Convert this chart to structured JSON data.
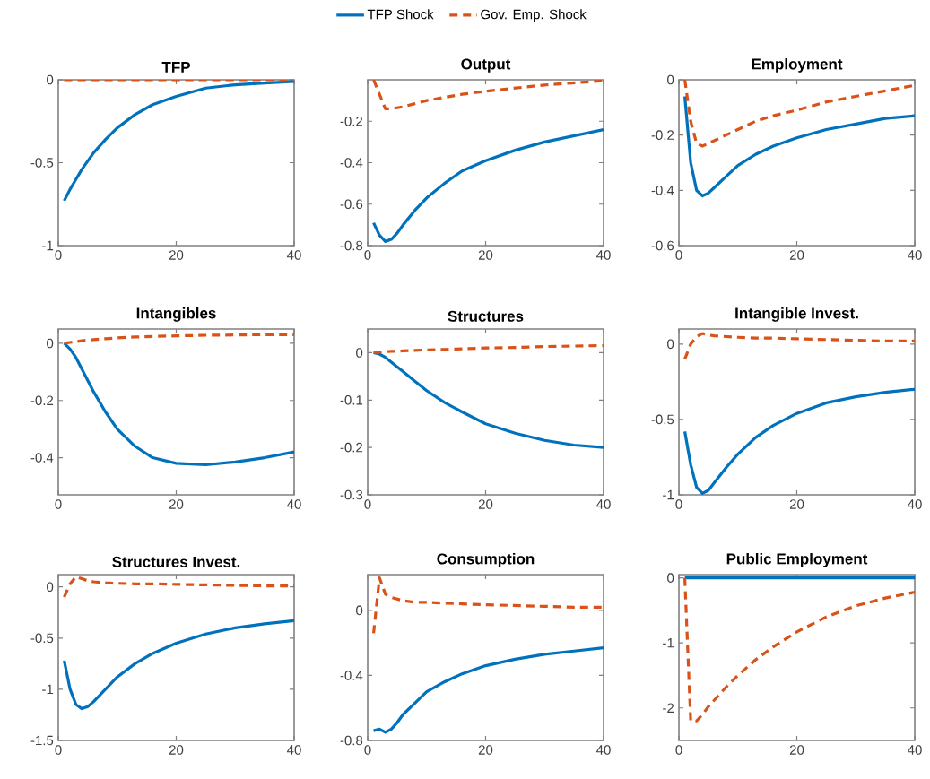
{
  "chart_data": [
    {
      "type": "line",
      "title": "TFP",
      "legend": "top",
      "x": [
        1,
        2,
        3,
        4,
        5,
        6,
        8,
        10,
        13,
        16,
        20,
        25,
        30,
        35,
        40
      ],
      "xlim": [
        0,
        40
      ],
      "xticks": [
        0,
        20,
        40
      ],
      "ylim": [
        -1,
        0
      ],
      "yticks": [
        -1,
        -0.5,
        0
      ],
      "series": [
        {
          "name": "TFP Shock",
          "color": "#0072bd",
          "line_style": "solid",
          "values": [
            -0.73,
            -0.66,
            -0.6,
            -0.54,
            -0.49,
            -0.44,
            -0.36,
            -0.29,
            -0.21,
            -0.15,
            -0.1,
            -0.05,
            -0.03,
            -0.02,
            -0.01
          ]
        },
        {
          "name": "Gov. Emp. Shock",
          "color": "#d95319",
          "line_style": "dashed",
          "values": [
            0,
            0,
            0,
            0,
            0,
            0,
            0,
            0,
            0,
            0,
            0,
            0,
            0,
            0,
            0
          ]
        }
      ]
    },
    {
      "type": "line",
      "title": "Output",
      "x": [
        1,
        2,
        3,
        4,
        5,
        6,
        8,
        10,
        13,
        16,
        20,
        25,
        30,
        35,
        40
      ],
      "xlim": [
        0,
        40
      ],
      "xticks": [
        0,
        20,
        40
      ],
      "ylim": [
        -0.8,
        0
      ],
      "yticks": [
        -0.8,
        -0.6,
        -0.4,
        -0.2
      ],
      "series": [
        {
          "color": "#0072bd",
          "line_style": "solid",
          "values": [
            -0.69,
            -0.75,
            -0.78,
            -0.77,
            -0.74,
            -0.7,
            -0.63,
            -0.57,
            -0.5,
            -0.44,
            -0.39,
            -0.34,
            -0.3,
            -0.27,
            -0.24
          ]
        },
        {
          "color": "#d95319",
          "line_style": "dashed",
          "values": [
            0,
            -0.07,
            -0.14,
            -0.14,
            -0.135,
            -0.13,
            -0.115,
            -0.1,
            -0.085,
            -0.07,
            -0.055,
            -0.04,
            -0.025,
            -0.015,
            -0.005
          ]
        }
      ]
    },
    {
      "type": "line",
      "title": "Employment",
      "x": [
        1,
        2,
        3,
        4,
        5,
        6,
        8,
        10,
        13,
        16,
        20,
        25,
        30,
        35,
        40
      ],
      "xlim": [
        0,
        40
      ],
      "xticks": [
        0,
        20,
        40
      ],
      "ylim": [
        -0.6,
        0
      ],
      "yticks": [
        -0.6,
        -0.4,
        -0.2,
        0
      ],
      "series": [
        {
          "color": "#0072bd",
          "line_style": "solid",
          "values": [
            -0.06,
            -0.3,
            -0.4,
            -0.42,
            -0.41,
            -0.39,
            -0.35,
            -0.31,
            -0.27,
            -0.24,
            -0.21,
            -0.18,
            -0.16,
            -0.14,
            -0.13
          ]
        },
        {
          "color": "#d95319",
          "line_style": "dashed",
          "values": [
            0,
            -0.15,
            -0.23,
            -0.24,
            -0.23,
            -0.22,
            -0.2,
            -0.18,
            -0.15,
            -0.13,
            -0.11,
            -0.08,
            -0.06,
            -0.04,
            -0.02
          ]
        }
      ]
    },
    {
      "type": "line",
      "title": "Intangibles",
      "x": [
        1,
        2,
        3,
        4,
        5,
        6,
        8,
        10,
        13,
        16,
        20,
        25,
        30,
        35,
        40
      ],
      "xlim": [
        0,
        40
      ],
      "xticks": [
        0,
        20,
        40
      ],
      "ylim": [
        -0.53,
        0.05
      ],
      "yticks": [
        -0.4,
        -0.2,
        0
      ],
      "series": [
        {
          "color": "#0072bd",
          "line_style": "solid",
          "values": [
            0,
            -0.02,
            -0.05,
            -0.09,
            -0.13,
            -0.17,
            -0.24,
            -0.3,
            -0.36,
            -0.4,
            -0.42,
            -0.425,
            -0.415,
            -0.4,
            -0.38
          ]
        },
        {
          "color": "#d95319",
          "line_style": "dashed",
          "values": [
            0,
            0.003,
            0.006,
            0.009,
            0.011,
            0.013,
            0.016,
            0.019,
            0.022,
            0.024,
            0.026,
            0.028,
            0.029,
            0.03,
            0.03
          ]
        }
      ]
    },
    {
      "type": "line",
      "title": "Structures",
      "x": [
        1,
        2,
        3,
        4,
        5,
        6,
        8,
        10,
        13,
        16,
        20,
        25,
        30,
        35,
        40
      ],
      "xlim": [
        0,
        40
      ],
      "xticks": [
        0,
        20,
        40
      ],
      "ylim": [
        -0.3,
        0.05
      ],
      "yticks": [
        -0.3,
        -0.2,
        -0.1,
        0
      ],
      "series": [
        {
          "color": "#0072bd",
          "line_style": "solid",
          "values": [
            0,
            -0.003,
            -0.01,
            -0.02,
            -0.03,
            -0.04,
            -0.06,
            -0.08,
            -0.105,
            -0.125,
            -0.15,
            -0.17,
            -0.185,
            -0.195,
            -0.2
          ]
        },
        {
          "color": "#d95319",
          "line_style": "dashed",
          "values": [
            0,
            0.001,
            0.002,
            0.003,
            0.003,
            0.004,
            0.005,
            0.006,
            0.007,
            0.008,
            0.01,
            0.011,
            0.013,
            0.014,
            0.015
          ]
        }
      ]
    },
    {
      "type": "line",
      "title": "Intangible Invest.",
      "x": [
        1,
        2,
        3,
        4,
        5,
        6,
        8,
        10,
        13,
        16,
        20,
        25,
        30,
        35,
        40
      ],
      "xlim": [
        0,
        40
      ],
      "xticks": [
        0,
        20,
        40
      ],
      "ylim": [
        -1,
        0.1
      ],
      "yticks": [
        -1,
        -0.5,
        0
      ],
      "series": [
        {
          "color": "#0072bd",
          "line_style": "solid",
          "values": [
            -0.58,
            -0.8,
            -0.95,
            -0.99,
            -0.97,
            -0.92,
            -0.82,
            -0.73,
            -0.62,
            -0.54,
            -0.46,
            -0.39,
            -0.35,
            -0.32,
            -0.3
          ]
        },
        {
          "color": "#d95319",
          "line_style": "dashed",
          "values": [
            -0.1,
            0,
            0.05,
            0.07,
            0.06,
            0.055,
            0.05,
            0.045,
            0.04,
            0.04,
            0.035,
            0.03,
            0.025,
            0.02,
            0.02
          ]
        }
      ]
    },
    {
      "type": "line",
      "title": "Structures Invest.",
      "x": [
        1,
        2,
        3,
        4,
        5,
        6,
        8,
        10,
        13,
        16,
        20,
        25,
        30,
        35,
        40
      ],
      "xlim": [
        0,
        40
      ],
      "xticks": [
        0,
        20,
        40
      ],
      "ylim": [
        -1.5,
        0.12
      ],
      "yticks": [
        -1.5,
        -1,
        -0.5,
        0
      ],
      "series": [
        {
          "color": "#0072bd",
          "line_style": "solid",
          "values": [
            -0.72,
            -1.0,
            -1.15,
            -1.19,
            -1.17,
            -1.12,
            -1.0,
            -0.88,
            -0.75,
            -0.65,
            -0.55,
            -0.46,
            -0.4,
            -0.36,
            -0.33
          ]
        },
        {
          "color": "#d95319",
          "line_style": "dashed",
          "values": [
            -0.1,
            0.03,
            0.1,
            0.08,
            0.06,
            0.05,
            0.04,
            0.035,
            0.03,
            0.03,
            0.025,
            0.02,
            0.015,
            0.01,
            0.01
          ]
        }
      ]
    },
    {
      "type": "line",
      "title": "Consumption",
      "x": [
        1,
        2,
        3,
        4,
        5,
        6,
        8,
        10,
        13,
        16,
        20,
        25,
        30,
        35,
        40
      ],
      "xlim": [
        0,
        40
      ],
      "xticks": [
        0,
        20,
        40
      ],
      "ylim": [
        -0.8,
        0.22
      ],
      "yticks": [
        -0.8,
        -0.4,
        0
      ],
      "series": [
        {
          "color": "#0072bd",
          "line_style": "solid",
          "values": [
            -0.74,
            -0.73,
            -0.75,
            -0.73,
            -0.69,
            -0.64,
            -0.57,
            -0.5,
            -0.44,
            -0.39,
            -0.34,
            -0.3,
            -0.27,
            -0.25,
            -0.23
          ]
        },
        {
          "color": "#d95319",
          "line_style": "dashed",
          "values": [
            -0.14,
            0.2,
            0.1,
            0.08,
            0.07,
            0.06,
            0.05,
            0.05,
            0.045,
            0.04,
            0.035,
            0.03,
            0.025,
            0.02,
            0.02
          ]
        }
      ]
    },
    {
      "type": "line",
      "title": "Public Employment",
      "x": [
        1,
        2,
        3,
        4,
        5,
        6,
        8,
        10,
        13,
        16,
        20,
        25,
        30,
        35,
        40
      ],
      "xlim": [
        0,
        40
      ],
      "xticks": [
        0,
        20,
        40
      ],
      "ylim": [
        -2.5,
        0.05
      ],
      "yticks": [
        -2,
        -1,
        0
      ],
      "series": [
        {
          "color": "#0072bd",
          "line_style": "solid",
          "values": [
            0,
            0,
            0,
            0,
            0,
            0,
            0,
            0,
            0,
            0,
            0,
            0,
            0,
            0,
            0
          ]
        },
        {
          "color": "#d95319",
          "line_style": "dashed",
          "values": [
            0,
            -2.2,
            -2.2,
            -2.1,
            -1.98,
            -1.88,
            -1.68,
            -1.5,
            -1.26,
            -1.06,
            -0.83,
            -0.6,
            -0.43,
            -0.31,
            -0.22
          ]
        }
      ]
    }
  ]
}
